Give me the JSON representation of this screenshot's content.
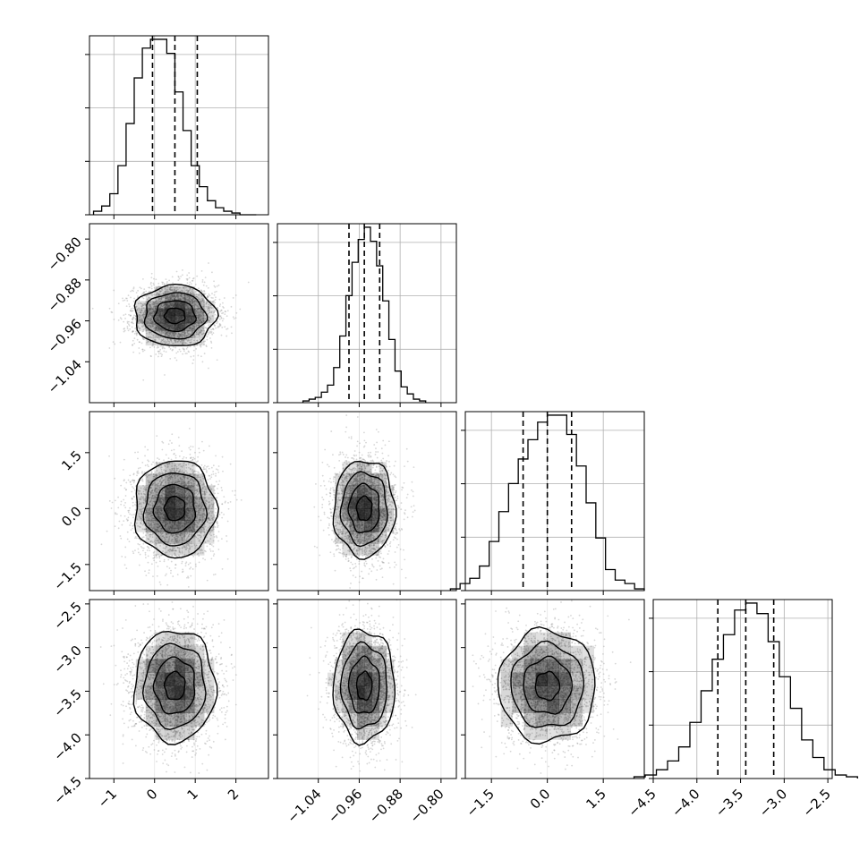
{
  "chart_data": {
    "type": "scatter",
    "subtype": "corner-plot",
    "title": "",
    "grid": true,
    "parameters": [
      {
        "range": [
          -1.6,
          2.8
        ],
        "ticks": [
          -1,
          0,
          1,
          2
        ],
        "tick_labels": [
          "−1",
          "0",
          "1",
          "2"
        ],
        "hist_ticks": [
          0,
          1,
          2,
          3
        ],
        "median": 0.5,
        "q16": -0.05,
        "q84": 1.05,
        "sigma": 0.5,
        "hist_counts": [
          2,
          5,
          12,
          28,
          52,
          78,
          95,
          100,
          100,
          92,
          70,
          48,
          28,
          16,
          8,
          4,
          2,
          1,
          0,
          0
        ]
      },
      {
        "range": [
          -1.12,
          -0.77
        ],
        "ticks": [
          -1.04,
          -0.96,
          -0.88,
          -0.8
        ],
        "tick_labels": [
          "−1.04",
          "−0.96",
          "−0.88",
          "−0.80"
        ],
        "hist_ticks": [
          0,
          1,
          2,
          3
        ],
        "median": -0.95,
        "q16": -0.98,
        "q84": -0.92,
        "sigma": 0.03,
        "hist_counts": [
          1,
          2,
          3,
          6,
          10,
          20,
          38,
          61,
          80,
          93,
          100,
          92,
          78,
          58,
          36,
          18,
          9,
          5,
          2,
          1
        ]
      },
      {
        "range": [
          -2.2,
          2.6
        ],
        "ticks": [
          -1.5,
          0.0,
          1.5
        ],
        "tick_labels": [
          "−1.5",
          "0.0",
          "1.5"
        ],
        "hist_ticks": [
          0,
          1,
          2,
          3
        ],
        "median": 0.0,
        "q16": -0.65,
        "q84": 0.65,
        "sigma": 0.65,
        "hist_counts": [
          1,
          4,
          7,
          14,
          28,
          45,
          61,
          75,
          86,
          96,
          100,
          100,
          89,
          71,
          50,
          30,
          12,
          6,
          4,
          1
        ]
      },
      {
        "range": [
          -4.5,
          -2.45
        ],
        "ticks": [
          -4.5,
          -4.0,
          -3.5,
          -3.0,
          -2.5
        ],
        "tick_labels": [
          "−4.5",
          "−4.0",
          "−3.5",
          "−3.0",
          "−2.5"
        ],
        "hist_ticks": [
          0,
          1,
          2,
          3
        ],
        "median": -3.44,
        "q16": -3.76,
        "q84": -3.12,
        "sigma": 0.32,
        "hist_counts": [
          1,
          2,
          5,
          10,
          18,
          32,
          50,
          68,
          82,
          96,
          100,
          94,
          78,
          58,
          40,
          22,
          12,
          5,
          2,
          1
        ]
      }
    ],
    "n_samples_per_panel": 3000,
    "colors": {
      "points": "#8c8c8c",
      "contour": "#000000",
      "density": "#000000",
      "grid": "#b0b0b0"
    }
  }
}
